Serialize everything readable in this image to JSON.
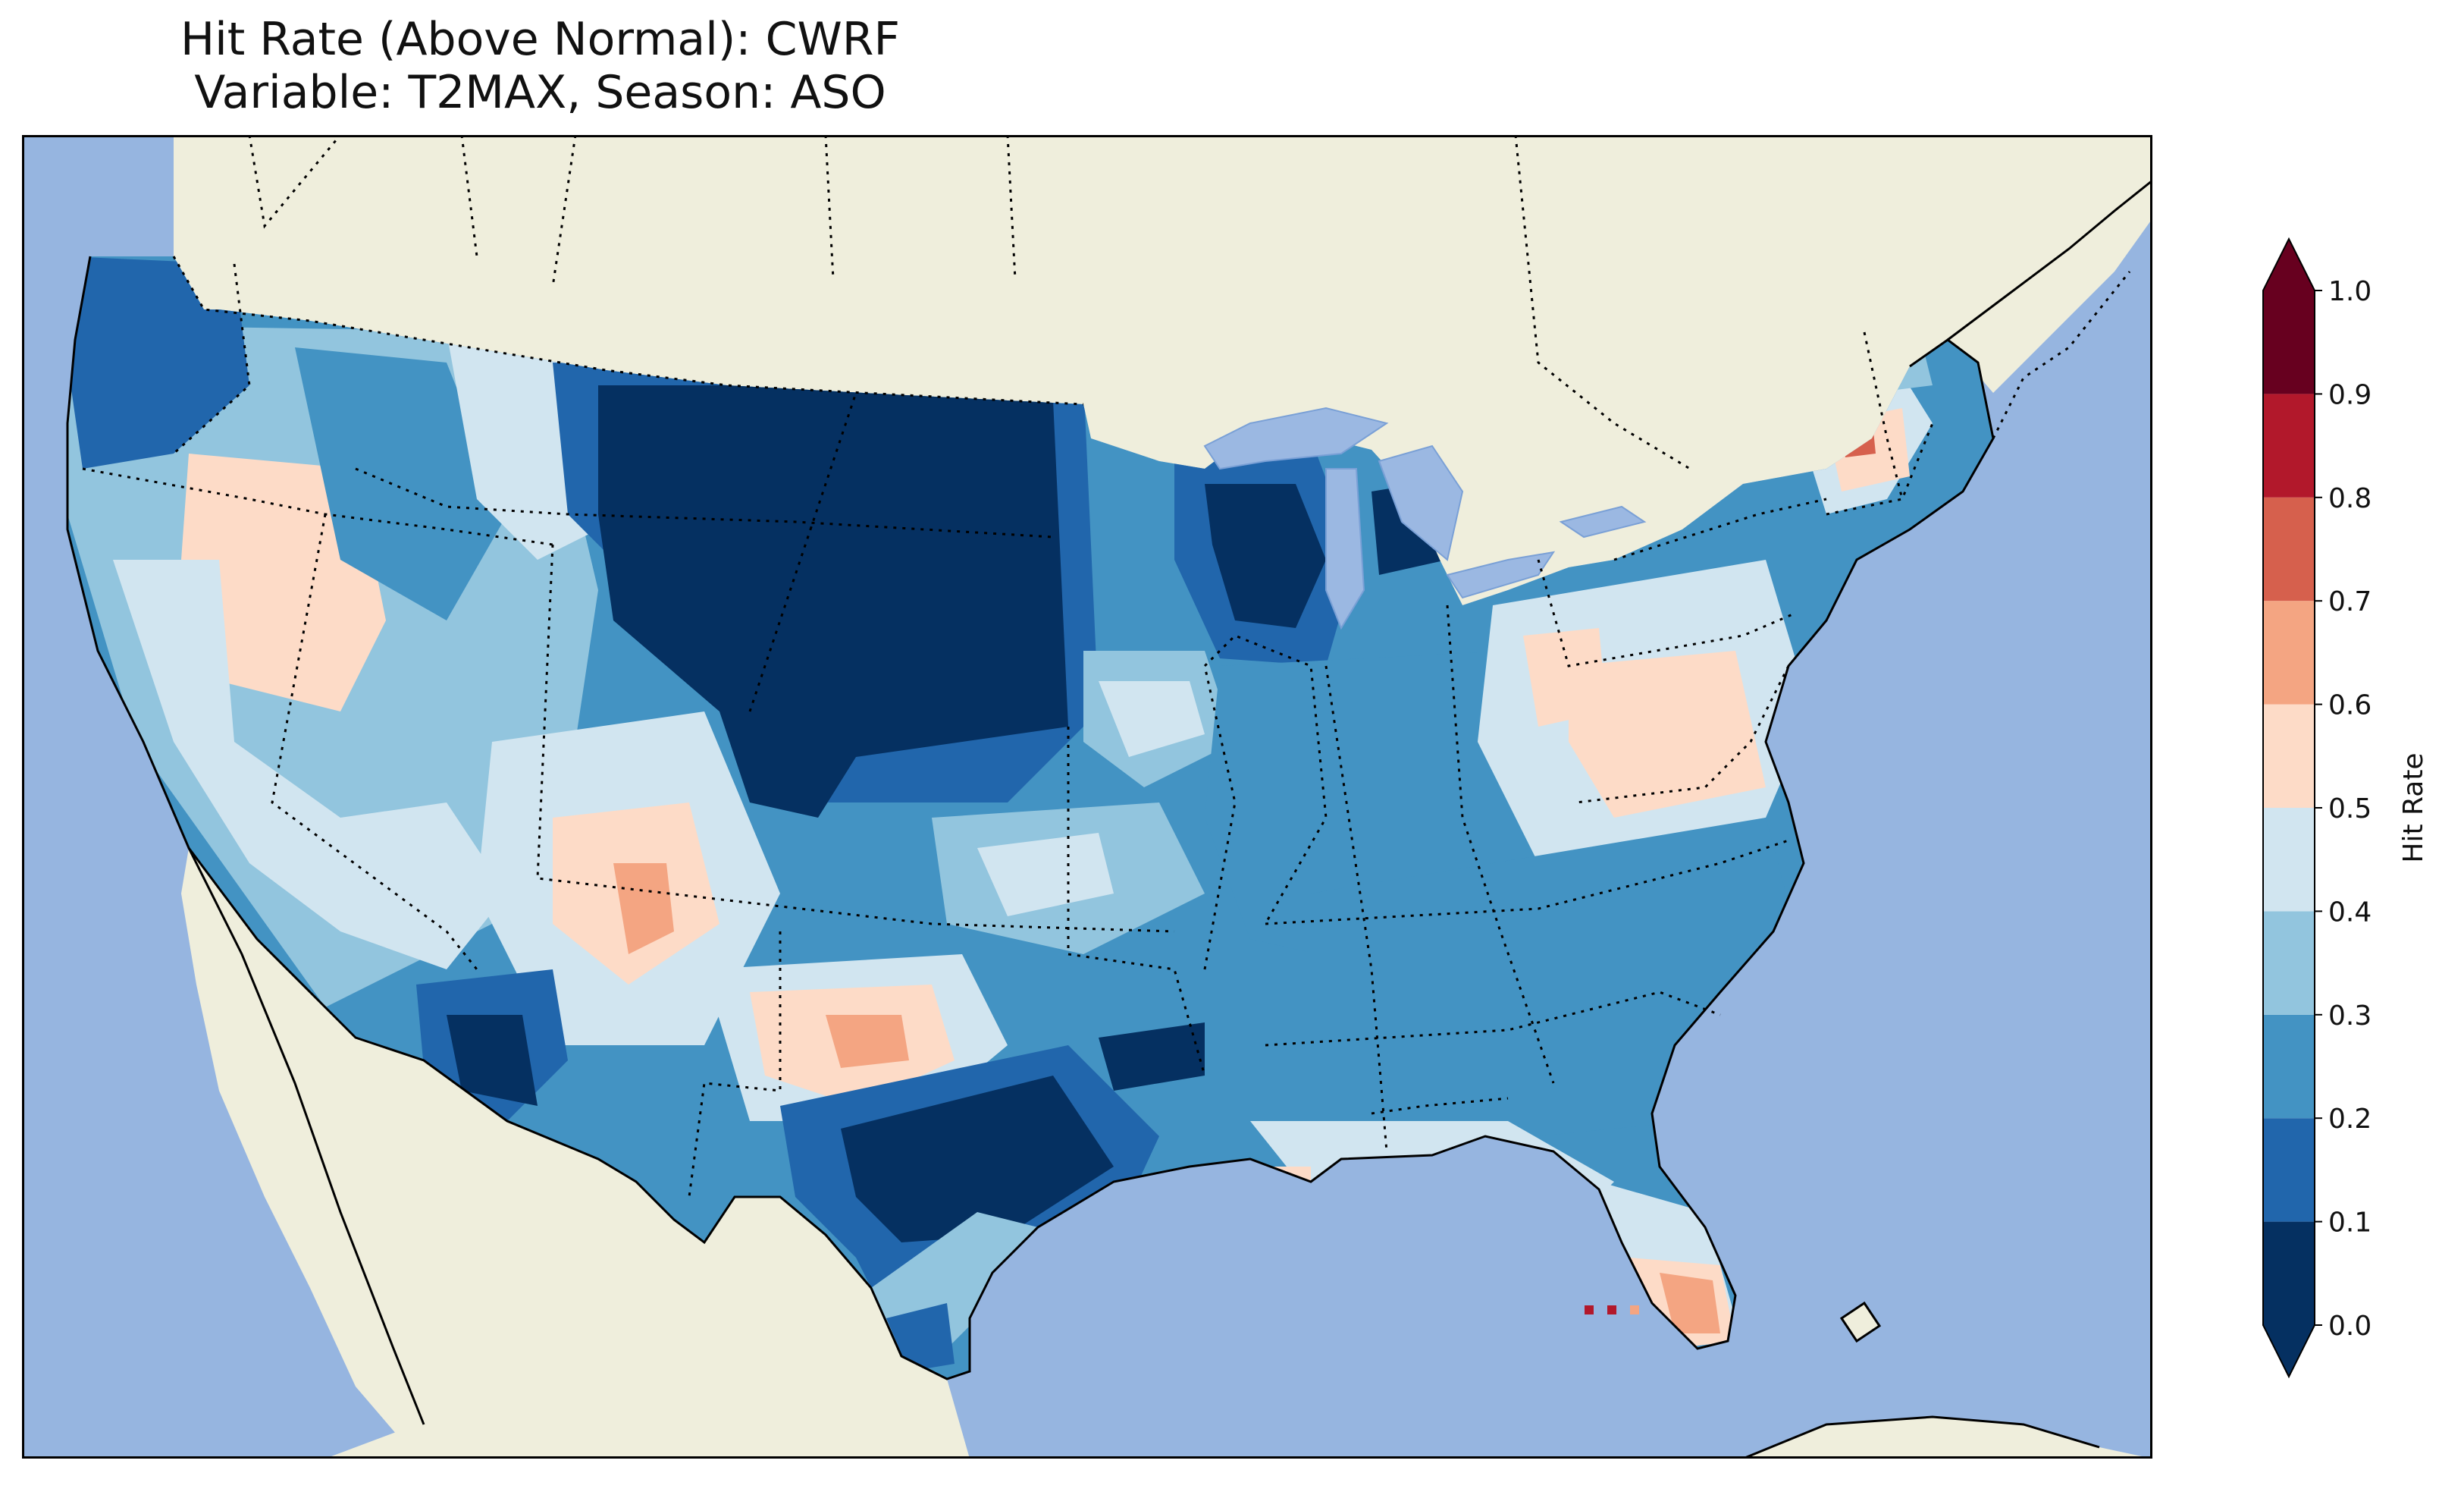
{
  "title": {
    "line1": "Hit Rate (Above Normal): CWRF",
    "line2": "Variable: T2MAX, Season: ASO"
  },
  "colors": {
    "ocean": "#96b5e0",
    "land": "#efeedc",
    "lakes": "#9bb8e2"
  },
  "colorbar": {
    "label": "Hit Rate",
    "ticks": [
      "0.0",
      "0.1",
      "0.2",
      "0.3",
      "0.4",
      "0.5",
      "0.6",
      "0.7",
      "0.8",
      "0.9",
      "1.0"
    ],
    "bins": [
      {
        "from": 0.0,
        "to": 0.1,
        "color": "#053061"
      },
      {
        "from": 0.1,
        "to": 0.2,
        "color": "#2166ac"
      },
      {
        "from": 0.2,
        "to": 0.3,
        "color": "#4393c3"
      },
      {
        "from": 0.3,
        "to": 0.4,
        "color": "#92c5de"
      },
      {
        "from": 0.4,
        "to": 0.5,
        "color": "#d1e5f0"
      },
      {
        "from": 0.5,
        "to": 0.6,
        "color": "#fddbc7"
      },
      {
        "from": 0.6,
        "to": 0.7,
        "color": "#f4a582"
      },
      {
        "from": 0.7,
        "to": 0.8,
        "color": "#d6604d"
      },
      {
        "from": 0.8,
        "to": 0.9,
        "color": "#b2182b"
      },
      {
        "from": 0.9,
        "to": 1.0,
        "color": "#67001f"
      }
    ],
    "extend": "both"
  },
  "regions": [
    {
      "name": "pacific-northwest",
      "value": 0.15
    },
    {
      "name": "great-basin",
      "value": 0.55
    },
    {
      "name": "northern-rockies",
      "value": 0.25
    },
    {
      "name": "northern-plains",
      "value": 0.05
    },
    {
      "name": "upper-midwest",
      "value": 0.05
    },
    {
      "name": "southwest",
      "value": 0.45
    },
    {
      "name": "four-corners-hotspot",
      "value": 0.65
    },
    {
      "name": "arizona-south",
      "value": 0.05
    },
    {
      "name": "texas-central",
      "value": 0.05
    },
    {
      "name": "texas-panhandle",
      "value": 0.62
    },
    {
      "name": "ohio-valley",
      "value": 0.25
    },
    {
      "name": "mid-atlantic",
      "value": 0.55
    },
    {
      "name": "southeast",
      "value": 0.25
    },
    {
      "name": "new-england",
      "value": 0.72
    },
    {
      "name": "south-florida",
      "value": 0.6
    }
  ]
}
